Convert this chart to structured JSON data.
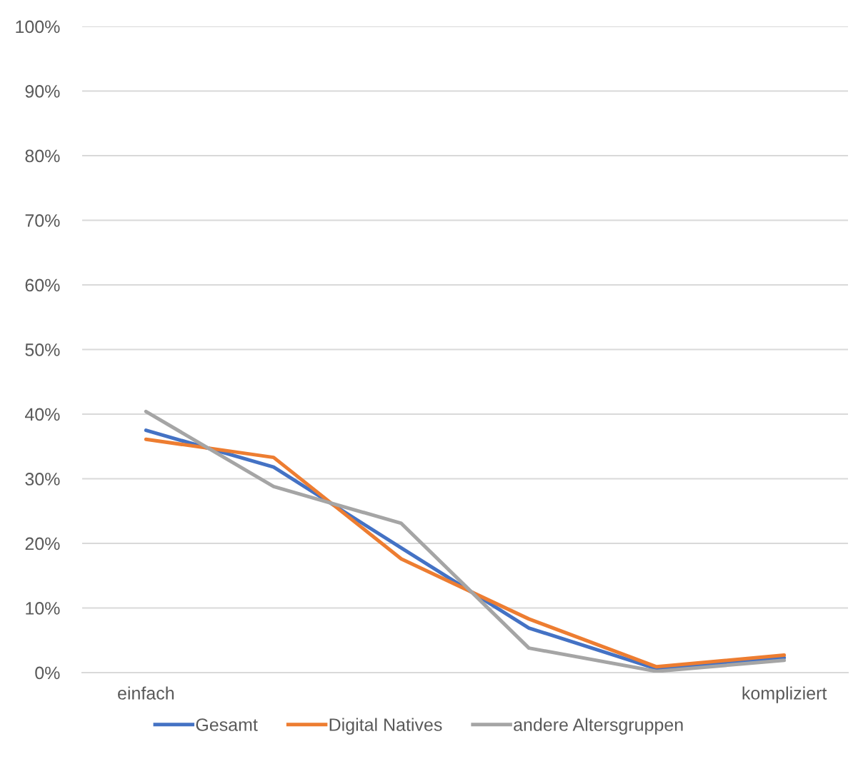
{
  "chart_data": {
    "type": "line",
    "categories": [
      "einfach",
      null,
      null,
      null,
      null,
      "kompliziert"
    ],
    "series": [
      {
        "name": "Gesamt",
        "color": "#4472c4",
        "values": [
          37.5,
          31.8,
          19.3,
          6.9,
          0.6,
          2.3
        ]
      },
      {
        "name": "Digital Natives",
        "color": "#ed7d31",
        "values": [
          36.1,
          33.3,
          17.6,
          8.3,
          0.9,
          2.7
        ]
      },
      {
        "name": "andere Altersgruppen",
        "color": "#a5a5a5",
        "values": [
          40.4,
          28.8,
          23.1,
          3.8,
          0.2,
          1.9
        ]
      }
    ],
    "ylim": [
      0,
      100
    ],
    "yticks": [
      {
        "value": 0,
        "label": "0%"
      },
      {
        "value": 10,
        "label": "10%"
      },
      {
        "value": 20,
        "label": "20%"
      },
      {
        "value": 30,
        "label": "30%"
      },
      {
        "value": 40,
        "label": "40%"
      },
      {
        "value": 50,
        "label": "50%"
      },
      {
        "value": 60,
        "label": "60%"
      },
      {
        "value": 70,
        "label": "70%"
      },
      {
        "value": 80,
        "label": "80%"
      },
      {
        "value": 90,
        "label": "90%"
      },
      {
        "value": 100,
        "label": "100%"
      }
    ],
    "grid": "y",
    "legend": "bottom",
    "marker": "none",
    "line_style": "solid"
  }
}
